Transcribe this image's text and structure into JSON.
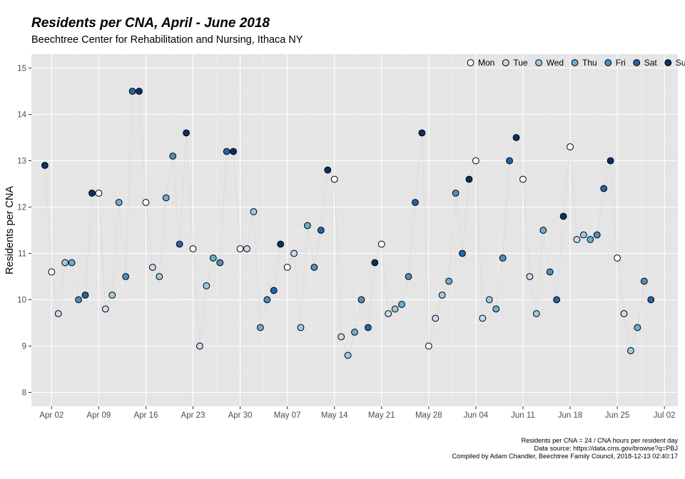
{
  "chart_data": {
    "type": "scatter",
    "title": "Residents per CNA, April - June 2018",
    "subtitle": "Beechtree Center for Rehabilitation and Nursing, Ithaca NY",
    "xlabel": "",
    "ylabel": "Residents per CNA",
    "ylim": [
      7.7,
      15.3
    ],
    "xlim": [
      "2018-03-30",
      "2018-07-04"
    ],
    "grid": true,
    "legend_position": "top-right",
    "y_ticks": [
      8,
      9,
      10,
      11,
      12,
      13,
      14,
      15
    ],
    "x_ticks": [
      {
        "date": "2018-04-02",
        "label": "Apr 02"
      },
      {
        "date": "2018-04-09",
        "label": "Apr 09"
      },
      {
        "date": "2018-04-16",
        "label": "Apr 16"
      },
      {
        "date": "2018-04-23",
        "label": "Apr 23"
      },
      {
        "date": "2018-04-30",
        "label": "Apr 30"
      },
      {
        "date": "2018-05-07",
        "label": "May 07"
      },
      {
        "date": "2018-05-14",
        "label": "May 14"
      },
      {
        "date": "2018-05-21",
        "label": "May 21"
      },
      {
        "date": "2018-05-28",
        "label": "May 28"
      },
      {
        "date": "2018-06-04",
        "label": "Jun 04"
      },
      {
        "date": "2018-06-11",
        "label": "Jun 11"
      },
      {
        "date": "2018-06-18",
        "label": "Jun 18"
      },
      {
        "date": "2018-06-25",
        "label": "Jun 25"
      },
      {
        "date": "2018-07-02",
        "label": "Jul 02"
      }
    ],
    "legend": [
      {
        "label": "Mon",
        "color": "#ffffff"
      },
      {
        "label": "Tue",
        "color": "#c6dbef"
      },
      {
        "label": "Wed",
        "color": "#9ecae1"
      },
      {
        "label": "Thu",
        "color": "#6baed6"
      },
      {
        "label": "Fri",
        "color": "#4a90c4"
      },
      {
        "label": "Sat",
        "color": "#2166ac"
      },
      {
        "label": "Sun",
        "color": "#0b2f6b"
      }
    ],
    "line_color": "#dcdcdc",
    "start_date": "2018-04-01",
    "values": [
      12.9,
      10.6,
      9.7,
      10.8,
      10.8,
      10.0,
      10.1,
      12.3,
      12.3,
      9.8,
      10.1,
      12.1,
      10.5,
      14.5,
      14.5,
      12.1,
      10.7,
      10.5,
      12.2,
      13.1,
      11.2,
      13.6,
      11.1,
      9.0,
      10.3,
      10.9,
      10.8,
      13.2,
      13.2,
      11.1,
      11.1,
      11.9,
      9.4,
      10.0,
      10.2,
      11.2,
      10.7,
      11.0,
      9.4,
      11.6,
      10.7,
      11.5,
      12.8,
      12.6,
      9.2,
      8.8,
      9.3,
      10.0,
      9.4,
      10.8,
      11.2,
      9.7,
      9.8,
      9.9,
      10.5,
      12.1,
      13.6,
      9.0,
      9.6,
      10.1,
      10.4,
      12.3,
      11.0,
      12.6,
      13.0,
      9.6,
      10.0,
      9.8,
      10.9,
      13.0,
      13.5,
      12.6,
      10.5,
      9.7,
      11.5,
      10.6,
      10.0,
      11.8,
      13.3,
      11.3,
      11.4,
      11.3,
      11.4,
      12.4,
      13.0,
      10.9,
      9.7,
      8.9,
      9.4,
      10.4,
      10.0
    ]
  },
  "caption": {
    "line1": "Residents per CNA = 24 / CNA hours per resident day",
    "line2": "Data source: https://data.cms.gov/browse?q=PBJ",
    "line3": "Compiled by Adam Chandler, Beechtree Family Council, 2018-12-13 02:40:17"
  }
}
